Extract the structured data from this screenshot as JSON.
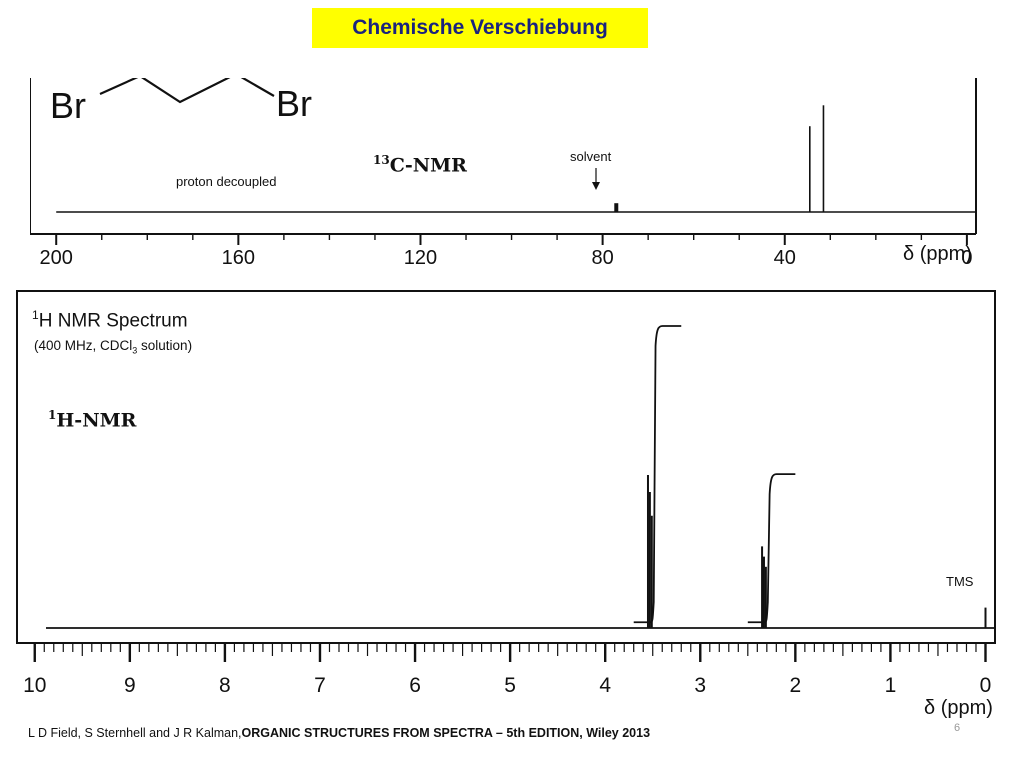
{
  "title": "Chemische Verschiebung",
  "molecule": {
    "atom_left": "Br",
    "atom_right": "Br"
  },
  "chart_data": [
    {
      "type": "line",
      "name": "c13",
      "label_prefix": "13",
      "label_suffix": "C-NMR",
      "caption": "proton decoupled",
      "annotation": "solvent",
      "xlabel": "δ (ppm)",
      "x_reversed": true,
      "xlim": [
        204,
        -2
      ],
      "baseline_range": [
        200,
        -2
      ],
      "ticks": [
        200,
        160,
        120,
        80,
        40,
        0
      ],
      "tick_labels": [
        "200",
        "160",
        "120",
        "80",
        "40",
        "0"
      ],
      "peaks": [
        {
          "x": 77,
          "height": 0.08
        },
        {
          "x": 34.5,
          "height": 0.78
        },
        {
          "x": 31.5,
          "height": 0.97
        }
      ]
    },
    {
      "type": "line",
      "name": "h1",
      "label_prefix": "1",
      "label_suffix": "H-NMR",
      "title_prefix": "1",
      "title_suffix": "H  NMR Spectrum",
      "subtitle_pre": "(400 MHz, CDCl",
      "subtitle_sub": "3",
      "subtitle_post": " solution)",
      "xlabel": "δ (ppm)",
      "x_reversed": true,
      "xlim": [
        10.05,
        -0.1
      ],
      "ticks": [
        10,
        9,
        8,
        7,
        6,
        5,
        4,
        3,
        2,
        1,
        0
      ],
      "tick_labels": [
        "10",
        "9",
        "8",
        "7",
        "6",
        "5",
        "4",
        "3",
        "2",
        "1",
        "0"
      ],
      "reference_label": "TMS",
      "peaks": [
        {
          "x": 3.53,
          "height": 0.4
        },
        {
          "x": 3.55,
          "height": 0.45
        },
        {
          "x": 3.51,
          "height": 0.33
        },
        {
          "x": 2.33,
          "height": 0.21
        },
        {
          "x": 2.35,
          "height": 0.24
        },
        {
          "x": 2.31,
          "height": 0.18
        },
        {
          "x": 0.0,
          "height": 0.06
        }
      ],
      "integrals": [
        {
          "from": 3.7,
          "to": 3.2,
          "start": 0.08,
          "end": 1.0
        },
        {
          "from": 2.5,
          "to": 2.0,
          "start": 0.08,
          "end": 0.54
        }
      ]
    }
  ],
  "footer": {
    "authors": "L D Field, S Sternhell and J R Kalman,",
    "book": "ORGANIC STRUCTURES FROM SPECTRA – 5th EDITION, Wiley 2013"
  },
  "page_number": "6"
}
